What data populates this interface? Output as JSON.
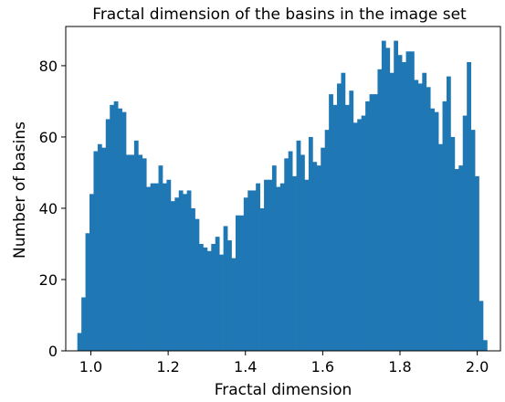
{
  "chart_data": {
    "type": "bar",
    "title": "Fractal dimension of the basins in the image set",
    "xlabel": "Fractal dimension",
    "ylabel": "Number of basins",
    "xlim": [
      0.935,
      2.06
    ],
    "ylim": [
      0,
      91
    ],
    "xticks": [
      1.0,
      1.2,
      1.4,
      1.6,
      1.8,
      2.0
    ],
    "xtick_labels": [
      "1.0",
      "1.2",
      "1.4",
      "1.6",
      "1.8",
      "2.0"
    ],
    "yticks": [
      0,
      20,
      40,
      60,
      80
    ],
    "ytick_labels": [
      "0",
      "20",
      "40",
      "60",
      "80"
    ],
    "grid": false,
    "bar_color": "#1f77b4",
    "bin_start": 0.965,
    "bin_width": 0.0105,
    "counts": [
      5,
      15,
      33,
      44,
      56,
      58,
      57,
      65,
      69,
      70,
      68,
      67,
      55,
      55,
      59,
      55,
      54,
      46,
      47,
      47,
      52,
      47,
      48,
      42,
      43,
      45,
      44,
      45,
      40,
      37,
      30,
      29,
      28,
      30,
      32,
      27,
      35,
      31,
      26,
      38,
      38,
      43,
      45,
      45,
      47,
      40,
      48,
      48,
      52,
      46,
      47,
      54,
      56,
      49,
      59,
      55,
      48,
      60,
      53,
      52,
      57,
      62,
      72,
      69,
      75,
      78,
      69,
      73,
      64,
      65,
      66,
      70,
      72,
      72,
      79,
      87,
      85,
      78,
      87,
      83,
      81,
      84,
      84,
      76,
      75,
      78,
      74,
      68,
      67,
      58,
      70,
      77,
      60,
      51,
      52,
      66,
      81,
      62,
      49,
      14,
      3
    ]
  }
}
